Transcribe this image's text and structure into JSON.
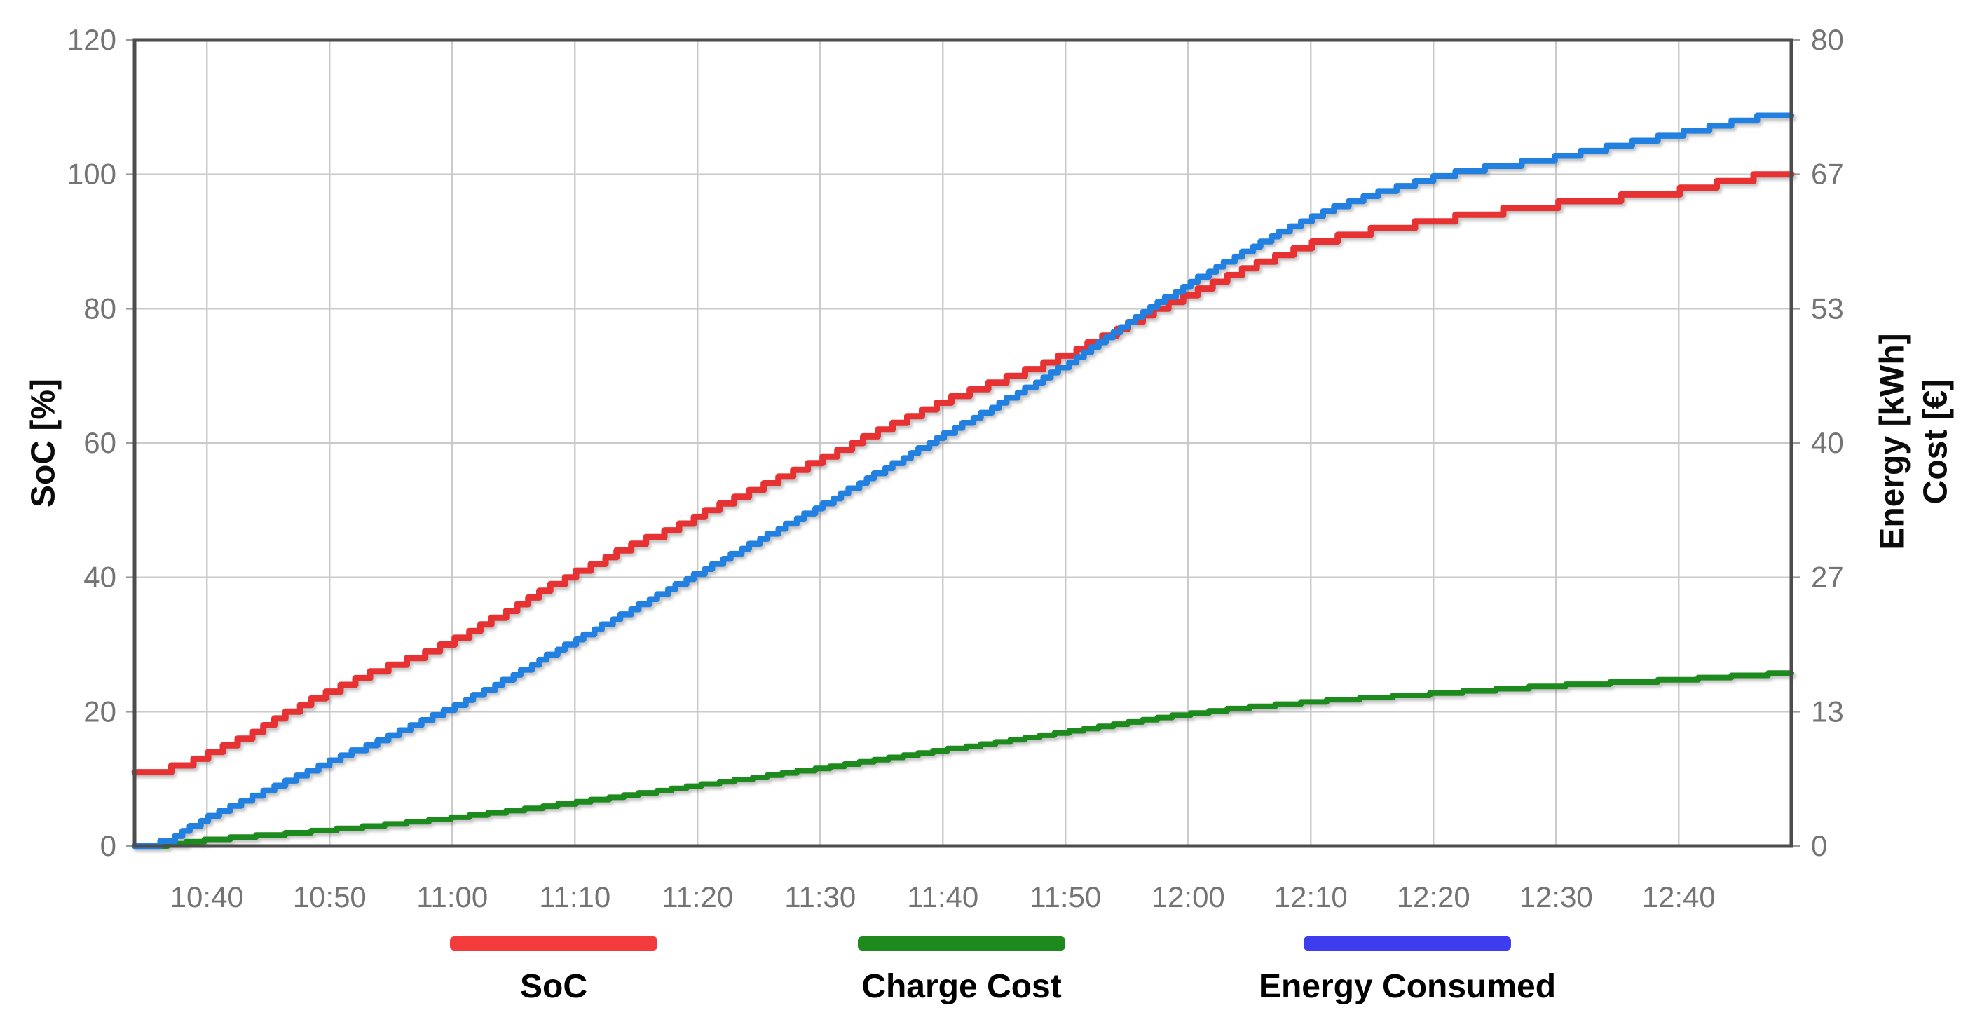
{
  "chart_data": {
    "type": "line",
    "title": "",
    "grid": true,
    "legend_position": "bottom",
    "x_axis": {
      "unit": "time",
      "tick_labels": [
        "10:40",
        "10:50",
        "11:00",
        "11:10",
        "11:20",
        "11:30",
        "11:40",
        "11:50",
        "12:00",
        "12:10",
        "12:20",
        "12:30",
        "12:40"
      ],
      "visible_range_start": "10:34",
      "visible_range_end": "12:49"
    },
    "y_axis_left": {
      "title": "SoC [%]",
      "range": [
        0,
        120
      ],
      "tick_labels": [
        "120",
        "100",
        "80",
        "60",
        "40",
        "20",
        "0"
      ],
      "tick_values": [
        120,
        100,
        80,
        60,
        40,
        20,
        0
      ]
    },
    "y_axis_right": {
      "title_line1": "Energy [kWh]",
      "title_line2": "Cost [€]",
      "range": [
        0,
        80
      ],
      "tick_labels": [
        "80",
        "67",
        "53",
        "40",
        "27",
        "13",
        "0"
      ],
      "tick_values": [
        80,
        66.67,
        53.33,
        40,
        26.67,
        13.33,
        0
      ]
    },
    "times": [
      "10:35",
      "10:40",
      "10:50",
      "11:00",
      "11:10",
      "11:20",
      "11:30",
      "11:40",
      "11:50",
      "12:00",
      "12:10",
      "12:20",
      "12:30",
      "12:40",
      "12:49"
    ],
    "series": [
      {
        "name": "SoC",
        "axis": "left",
        "unit": "%",
        "color": "#e63232",
        "line_width": 9,
        "step_quantum": 1,
        "values": [
          11,
          13.5,
          23,
          30.5,
          40.5,
          49,
          57.5,
          66,
          73,
          82,
          89.5,
          93,
          95.5,
          97.5,
          100
        ]
      },
      {
        "name": "Charge Cost",
        "axis": "right",
        "unit": "€",
        "color": "#1e8a1e",
        "line_width": 8,
        "step_quantum": 0.22,
        "values": [
          0,
          0.6,
          1.6,
          2.8,
          4.3,
          6.0,
          7.7,
          9.5,
          11.3,
          13.1,
          14.3,
          15.1,
          15.9,
          16.5,
          17.1
        ]
      },
      {
        "name": "Energy Consumed",
        "axis": "right",
        "unit": "kWh",
        "color": "#2280e0",
        "line_width": 8.5,
        "step_quantum": 0.5,
        "values": [
          0,
          2.7,
          8.3,
          13.7,
          20.3,
          27,
          33.7,
          40.7,
          47.7,
          55.7,
          62.3,
          66.3,
          68.3,
          70.7,
          72.5
        ]
      }
    ],
    "legend": [
      {
        "label": "SoC",
        "swatch_color": "#f43b3b",
        "center_x": 790
      },
      {
        "label": "Charge Cost",
        "swatch_color": "#1e8a1e",
        "center_x": 1372
      },
      {
        "label": "Energy Consumed",
        "swatch_color": "#3d3def",
        "center_x": 2008
      }
    ],
    "colors": {
      "gridline": "#cacaca",
      "plot_border": "#4d4d4d",
      "tick_text": "#747474",
      "axis_title_text": "#0b0b0b",
      "background": "#ffffff"
    }
  }
}
